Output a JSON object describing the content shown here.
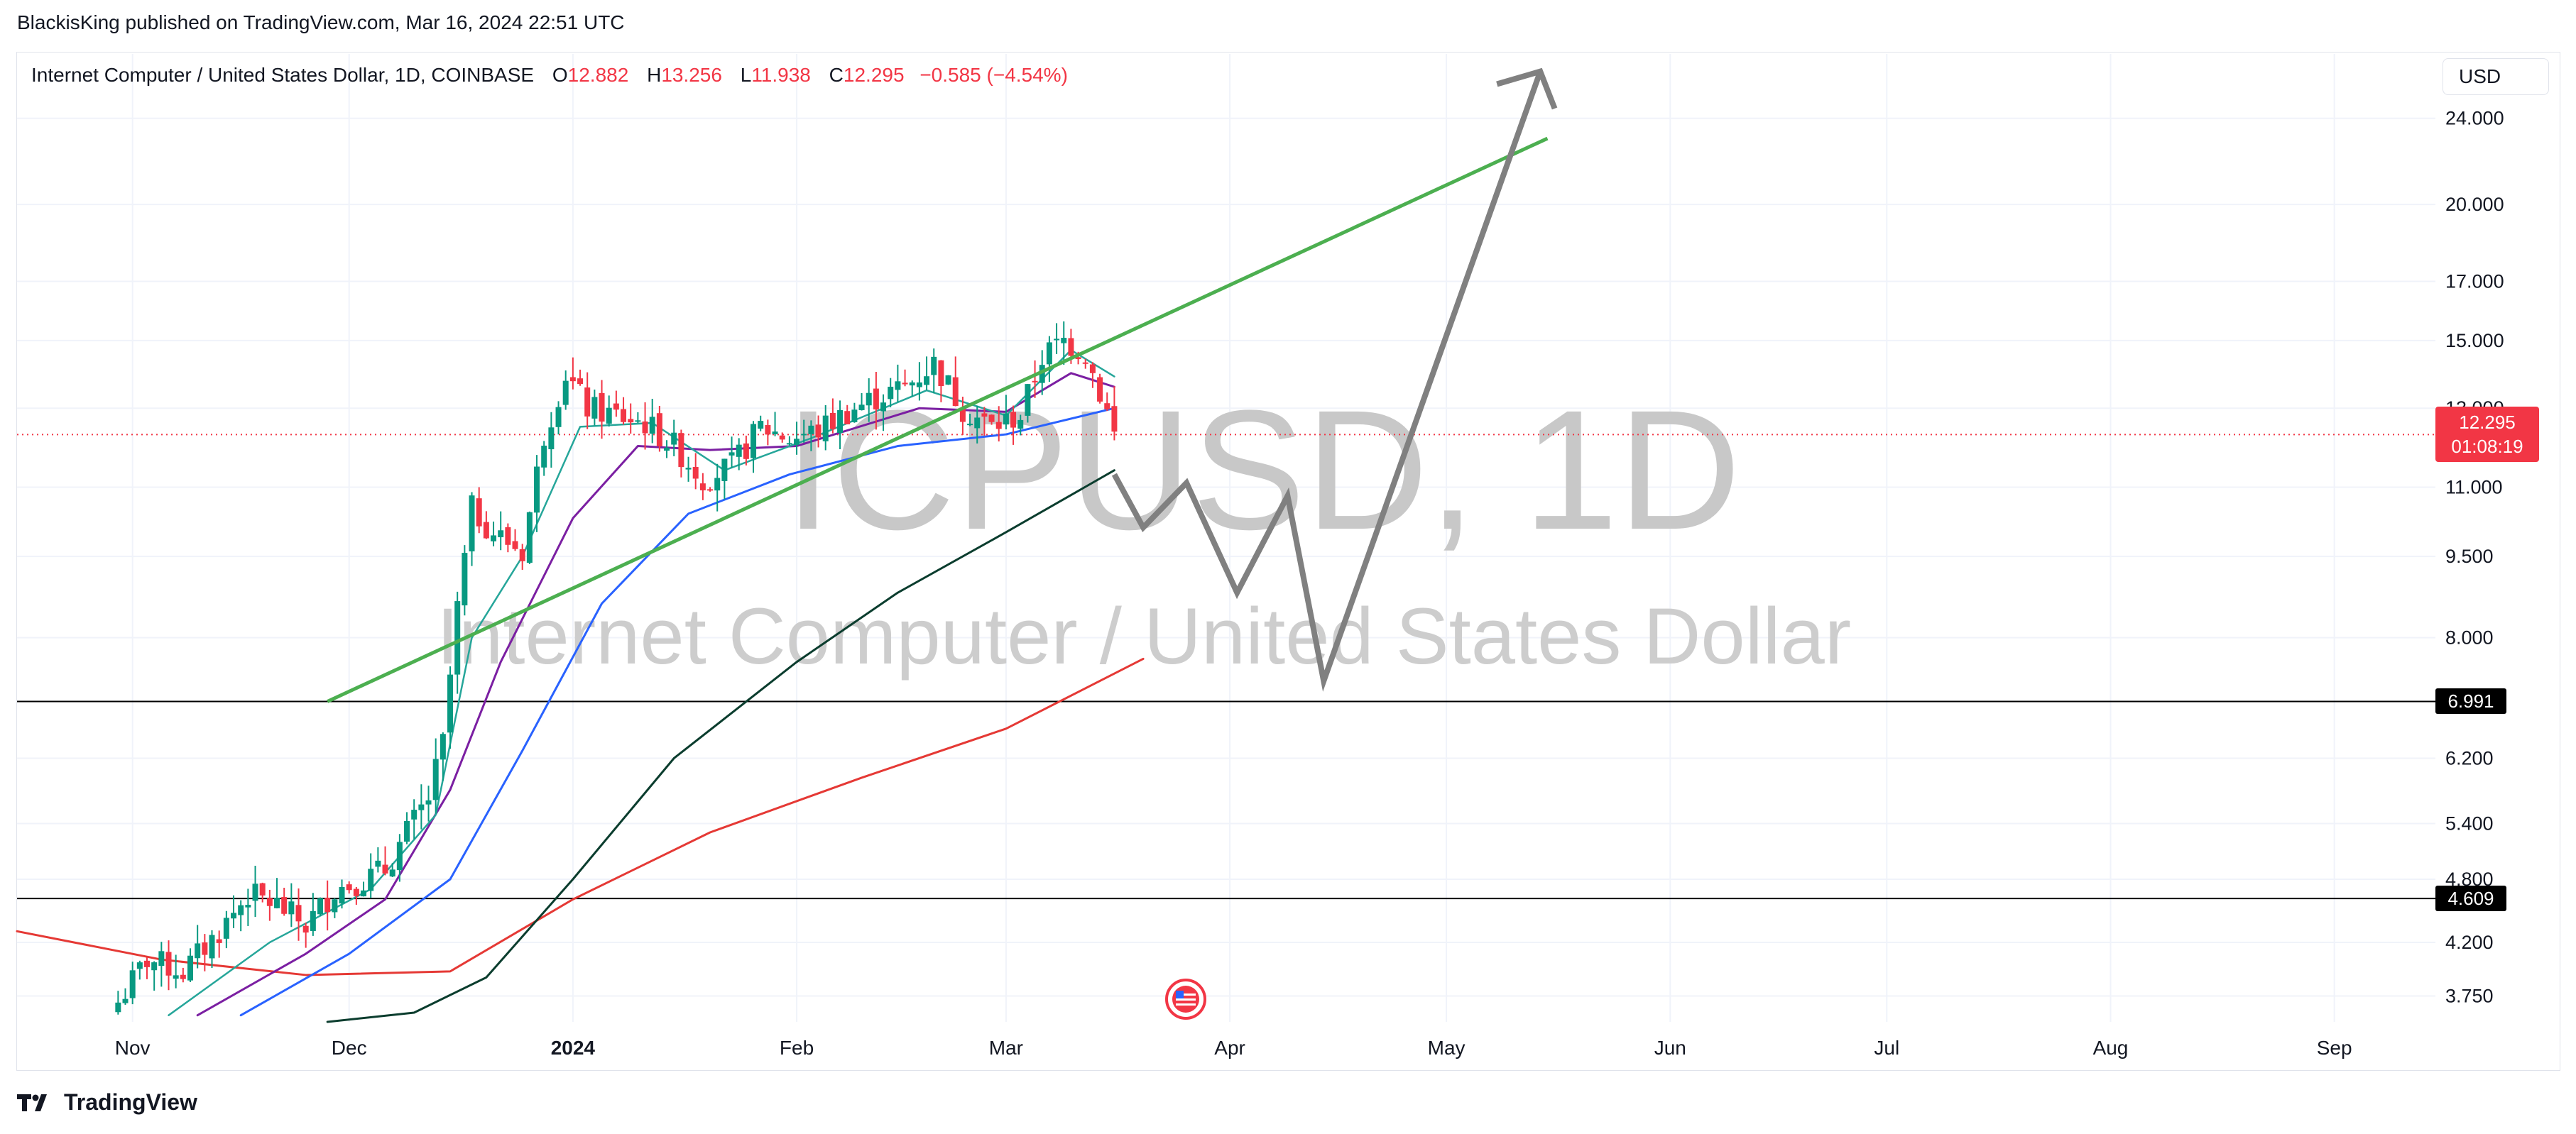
{
  "header": {
    "publisher": "BlackisKing published on TradingView.com, Mar 16, 2024 22:51 UTC"
  },
  "legend": {
    "symbol": "Internet Computer / United States Dollar, 1D, COINBASE",
    "open_label": "O",
    "open": "12.882",
    "high_label": "H",
    "high": "13.256",
    "low_label": "L",
    "low": "11.938",
    "close_label": "C",
    "close": "12.295",
    "change": "−0.585 (−4.54%)"
  },
  "currency": "USD",
  "watermark": {
    "ticker": "ICPUSD, 1D",
    "name": "Internet Computer / United States Dollar"
  },
  "last_price": {
    "price": "12.295",
    "countdown": "01:08:19"
  },
  "footer": {
    "brand": "TradingView"
  },
  "colors": {
    "up": "#089981",
    "down": "#f23645",
    "trendline": "#4caf50",
    "projection": "#808080"
  },
  "chart_data": {
    "type": "candlestick",
    "y_scale": "log",
    "ylim": [
      3.55,
      27.5
    ],
    "xlim": [
      "2023-10-16",
      "2024-09-15"
    ],
    "x_ticks": [
      {
        "label": "Nov",
        "date": "2023-11-01",
        "bold": false
      },
      {
        "label": "Dec",
        "date": "2023-12-01",
        "bold": false
      },
      {
        "label": "2024",
        "date": "2024-01-01",
        "bold": true
      },
      {
        "label": "Feb",
        "date": "2024-02-01",
        "bold": false
      },
      {
        "label": "Mar",
        "date": "2024-03-01",
        "bold": false
      },
      {
        "label": "Apr",
        "date": "2024-04-01",
        "bold": false
      },
      {
        "label": "May",
        "date": "2024-05-01",
        "bold": false
      },
      {
        "label": "Jun",
        "date": "2024-06-01",
        "bold": false
      },
      {
        "label": "Jul",
        "date": "2024-07-01",
        "bold": false
      },
      {
        "label": "Aug",
        "date": "2024-08-01",
        "bold": false
      },
      {
        "label": "Sep",
        "date": "2024-09-01",
        "bold": false
      }
    ],
    "y_ticks": [
      "24.000",
      "20.000",
      "17.000",
      "15.000",
      "13.000",
      "11.000",
      "9.500",
      "8.000",
      "6.200",
      "5.400",
      "4.800",
      "4.200",
      "3.750"
    ],
    "closes": [
      [
        "2023-10-30",
        3.7
      ],
      [
        "2023-11-03",
        4.05
      ],
      [
        "2023-11-08",
        3.95
      ],
      [
        "2023-11-13",
        4.3
      ],
      [
        "2023-11-17",
        4.65
      ],
      [
        "2023-11-21",
        4.55
      ],
      [
        "2023-11-25",
        4.35
      ],
      [
        "2023-11-29",
        4.7
      ],
      [
        "2023-12-03",
        4.8
      ],
      [
        "2023-12-06",
        4.9
      ],
      [
        "2023-12-09",
        5.3
      ],
      [
        "2023-12-12",
        5.7
      ],
      [
        "2023-12-14",
        6.4
      ],
      [
        "2023-12-16",
        8.5
      ],
      [
        "2023-12-18",
        10.5
      ],
      [
        "2023-12-21",
        10.0
      ],
      [
        "2023-12-25",
        9.6
      ],
      [
        "2023-12-28",
        12.3
      ],
      [
        "2023-12-31",
        14.0
      ],
      [
        "2024-01-03",
        13.0
      ],
      [
        "2024-01-07",
        12.8
      ],
      [
        "2024-01-11",
        12.6
      ],
      [
        "2024-01-15",
        12.0
      ],
      [
        "2024-01-19",
        11.2
      ],
      [
        "2024-01-23",
        11.5
      ],
      [
        "2024-01-27",
        12.5
      ],
      [
        "2024-01-31",
        12.2
      ],
      [
        "2024-02-04",
        12.4
      ],
      [
        "2024-02-08",
        12.9
      ],
      [
        "2024-02-12",
        13.3
      ],
      [
        "2024-02-16",
        13.6
      ],
      [
        "2024-02-20",
        14.3
      ],
      [
        "2024-02-24",
        13.0
      ],
      [
        "2024-02-28",
        12.5
      ],
      [
        "2024-03-03",
        12.8
      ],
      [
        "2024-03-06",
        14.5
      ],
      [
        "2024-03-09",
        15.0
      ],
      [
        "2024-03-12",
        14.6
      ],
      [
        "2024-03-15",
        12.9
      ],
      [
        "2024-03-16",
        12.295
      ]
    ],
    "ema_fast": [
      [
        "2023-11-06",
        3.6
      ],
      [
        "2023-11-20",
        4.2
      ],
      [
        "2023-12-04",
        4.7
      ],
      [
        "2023-12-13",
        5.5
      ],
      [
        "2023-12-18",
        8.0
      ],
      [
        "2023-12-25",
        9.5
      ],
      [
        "2024-01-02",
        12.5
      ],
      [
        "2024-01-12",
        12.6
      ],
      [
        "2024-01-22",
        11.4
      ],
      [
        "2024-02-03",
        12.2
      ],
      [
        "2024-02-19",
        13.5
      ],
      [
        "2024-03-01",
        12.8
      ],
      [
        "2024-03-10",
        14.7
      ],
      [
        "2024-03-16",
        13.9
      ]
    ],
    "ema_mid": [
      [
        "2023-11-10",
        3.6
      ],
      [
        "2023-11-25",
        4.1
      ],
      [
        "2023-12-06",
        4.6
      ],
      [
        "2023-12-15",
        5.8
      ],
      [
        "2023-12-22",
        7.6
      ],
      [
        "2024-01-01",
        10.3
      ],
      [
        "2024-01-10",
        12.0
      ],
      [
        "2024-01-20",
        11.9
      ],
      [
        "2024-02-01",
        12.0
      ],
      [
        "2024-02-18",
        13.0
      ],
      [
        "2024-03-01",
        12.9
      ],
      [
        "2024-03-10",
        14.0
      ],
      [
        "2024-03-16",
        13.6
      ]
    ],
    "ema_slow": [
      [
        "2023-11-16",
        3.6
      ],
      [
        "2023-12-01",
        4.1
      ],
      [
        "2023-12-15",
        4.8
      ],
      [
        "2023-12-25",
        6.3
      ],
      [
        "2024-01-05",
        8.6
      ],
      [
        "2024-01-17",
        10.4
      ],
      [
        "2024-01-31",
        11.3
      ],
      [
        "2024-02-15",
        12.0
      ],
      [
        "2024-03-01",
        12.3
      ],
      [
        "2024-03-16",
        13.0
      ]
    ],
    "ma_black": [
      [
        "2023-11-28",
        3.55
      ],
      [
        "2023-12-10",
        3.62
      ],
      [
        "2023-12-20",
        3.9
      ],
      [
        "2024-01-01",
        4.8
      ],
      [
        "2024-01-15",
        6.2
      ],
      [
        "2024-02-01",
        7.6
      ],
      [
        "2024-02-15",
        8.8
      ],
      [
        "2024-03-01",
        10.0
      ],
      [
        "2024-03-16",
        11.4
      ]
    ],
    "ma_red": [
      [
        "2023-10-16",
        4.3
      ],
      [
        "2023-11-05",
        4.05
      ],
      [
        "2023-11-25",
        3.92
      ],
      [
        "2023-12-15",
        3.95
      ],
      [
        "2024-01-01",
        4.6
      ],
      [
        "2024-01-20",
        5.3
      ],
      [
        "2024-02-10",
        5.95
      ],
      [
        "2024-03-01",
        6.6
      ],
      [
        "2024-03-20",
        7.65
      ]
    ],
    "trendline": [
      [
        "2023-11-28",
        6.991
      ],
      [
        "2024-05-15",
        23.0
      ]
    ],
    "horizontal_levels": [
      6.991,
      4.609
    ],
    "projection_path": [
      [
        "2024-03-16",
        11.3
      ],
      [
        "2024-03-20",
        10.1
      ],
      [
        "2024-03-26",
        11.1
      ],
      [
        "2024-04-02",
        8.8
      ],
      [
        "2024-04-09",
        10.8
      ],
      [
        "2024-04-14",
        7.3
      ],
      [
        "2024-05-14",
        26.5
      ]
    ],
    "projection_arrowhead": [
      [
        "2024-05-08",
        25.8
      ],
      [
        "2024-05-14",
        26.5
      ],
      [
        "2024-05-16",
        24.5
      ]
    ],
    "current_price": 12.295
  }
}
